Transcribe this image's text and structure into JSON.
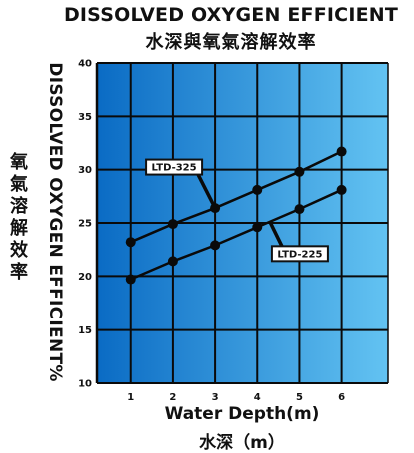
{
  "chart_data": {
    "type": "line",
    "title": "DISSOLVED OXYGEN EFFICIENT",
    "subtitle": "水深與氧氣溶解效率",
    "xlabel": "Water Depth(m)",
    "xlabel_zh": "水深（m）",
    "ylabel": "DISSOLVED OXYGEN EFFICIENT%",
    "ylabel_zh": "氧氣溶解效率",
    "x": [
      1,
      2,
      3,
      4,
      5,
      6
    ],
    "x_tick_labels": [
      "1",
      "2",
      "3",
      "4",
      "5",
      "6"
    ],
    "y_tick_labels": [
      "10",
      "15",
      "20",
      "25",
      "30",
      "35",
      "40"
    ],
    "xlim": [
      0.2,
      7.1
    ],
    "ylim": [
      10,
      40
    ],
    "grid": true,
    "series": [
      {
        "name": "LTD-325",
        "values": [
          23.2,
          24.9,
          26.4,
          28.1,
          29.8,
          31.7
        ],
        "label_anchor_x": 3
      },
      {
        "name": "LTD-225",
        "values": [
          19.7,
          21.4,
          22.9,
          24.6,
          26.3,
          28.1
        ],
        "label_anchor_x": 4.3
      }
    ],
    "colors": {
      "background_left": "#0a6bc4",
      "background_right": "#63c3f2",
      "grid": "#0a0a0a",
      "line": "#0a0a0a",
      "label_box": "#ffffff"
    }
  }
}
